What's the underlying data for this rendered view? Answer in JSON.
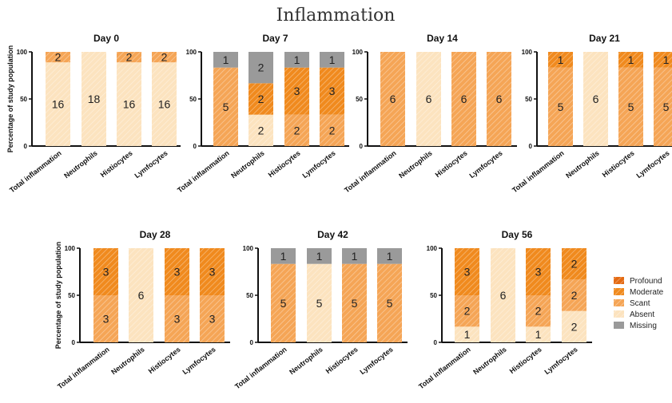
{
  "chart_data": {
    "type": "bar",
    "stacked": true,
    "title": "Inflammation",
    "ylabel": "Percentage of study population",
    "ylim": [
      0,
      100
    ],
    "yticks": [
      "0",
      "50",
      "100"
    ],
    "categories": [
      "Total inflammation",
      "Neutrophils",
      "Histiocytes",
      "Lymfocytes"
    ],
    "legend": {
      "placement": "right",
      "items": [
        {
          "key": "profound",
          "label": "Profound",
          "color": "#e46a12"
        },
        {
          "key": "moderate",
          "label": "Moderate",
          "color": "#f08a1e"
        },
        {
          "key": "scant",
          "label": "Scant",
          "color": "#f5a556"
        },
        {
          "key": "absent",
          "label": "Absent",
          "color": "#fce3bf"
        },
        {
          "key": "missing",
          "label": "Missing",
          "color": "#9a9a9a"
        }
      ]
    },
    "panels": [
      {
        "title": "Day 0",
        "bars": [
          [
            {
              "level": "absent",
              "count": 16
            },
            {
              "level": "scant",
              "count": 2
            }
          ],
          [
            {
              "level": "absent",
              "count": 18
            }
          ],
          [
            {
              "level": "absent",
              "count": 16
            },
            {
              "level": "scant",
              "count": 2
            }
          ],
          [
            {
              "level": "absent",
              "count": 16
            },
            {
              "level": "scant",
              "count": 2
            }
          ]
        ]
      },
      {
        "title": "Day 7",
        "bars": [
          [
            {
              "level": "scant",
              "count": 5
            },
            {
              "level": "missing",
              "count": 1
            }
          ],
          [
            {
              "level": "absent",
              "count": 2
            },
            {
              "level": "moderate",
              "count": 2
            },
            {
              "level": "missing",
              "count": 2
            }
          ],
          [
            {
              "level": "scant",
              "count": 2
            },
            {
              "level": "moderate",
              "count": 3
            },
            {
              "level": "missing",
              "count": 1
            }
          ],
          [
            {
              "level": "scant",
              "count": 2
            },
            {
              "level": "moderate",
              "count": 3
            },
            {
              "level": "missing",
              "count": 1
            }
          ]
        ]
      },
      {
        "title": "Day 14",
        "bars": [
          [
            {
              "level": "scant",
              "count": 6
            }
          ],
          [
            {
              "level": "absent",
              "count": 6
            }
          ],
          [
            {
              "level": "scant",
              "count": 6
            }
          ],
          [
            {
              "level": "scant",
              "count": 6
            }
          ]
        ]
      },
      {
        "title": "Day 21",
        "bars": [
          [
            {
              "level": "scant",
              "count": 5
            },
            {
              "level": "moderate",
              "count": 1
            }
          ],
          [
            {
              "level": "absent",
              "count": 6
            }
          ],
          [
            {
              "level": "scant",
              "count": 5
            },
            {
              "level": "moderate",
              "count": 1
            }
          ],
          [
            {
              "level": "scant",
              "count": 5
            },
            {
              "level": "moderate",
              "count": 1
            }
          ]
        ]
      },
      {
        "title": "Day 28",
        "bars": [
          [
            {
              "level": "scant",
              "count": 3
            },
            {
              "level": "moderate",
              "count": 3
            }
          ],
          [
            {
              "level": "absent",
              "count": 6
            }
          ],
          [
            {
              "level": "scant",
              "count": 3
            },
            {
              "level": "moderate",
              "count": 3
            }
          ],
          [
            {
              "level": "scant",
              "count": 3
            },
            {
              "level": "moderate",
              "count": 3
            }
          ]
        ]
      },
      {
        "title": "Day 42",
        "bars": [
          [
            {
              "level": "scant",
              "count": 5
            },
            {
              "level": "missing",
              "count": 1
            }
          ],
          [
            {
              "level": "absent",
              "count": 5
            },
            {
              "level": "missing",
              "count": 1
            }
          ],
          [
            {
              "level": "scant",
              "count": 5
            },
            {
              "level": "missing",
              "count": 1
            }
          ],
          [
            {
              "level": "scant",
              "count": 5
            },
            {
              "level": "missing",
              "count": 1
            }
          ]
        ]
      },
      {
        "title": "Day 56",
        "bars": [
          [
            {
              "level": "absent",
              "count": 1
            },
            {
              "level": "scant",
              "count": 2
            },
            {
              "level": "moderate",
              "count": 3
            }
          ],
          [
            {
              "level": "absent",
              "count": 6
            }
          ],
          [
            {
              "level": "absent",
              "count": 1
            },
            {
              "level": "scant",
              "count": 2
            },
            {
              "level": "moderate",
              "count": 3
            }
          ],
          [
            {
              "level": "absent",
              "count": 2
            },
            {
              "level": "scant",
              "count": 2
            },
            {
              "level": "moderate",
              "count": 2
            }
          ]
        ]
      }
    ]
  }
}
